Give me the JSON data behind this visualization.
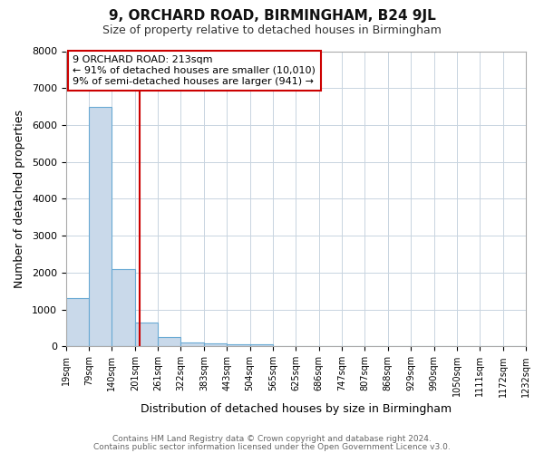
{
  "title1": "9, ORCHARD ROAD, BIRMINGHAM, B24 9JL",
  "title2": "Size of property relative to detached houses in Birmingham",
  "xlabel": "Distribution of detached houses by size in Birmingham",
  "ylabel": "Number of detached properties",
  "bar_heights": [
    1300,
    6500,
    2100,
    650,
    260,
    100,
    70,
    55,
    55,
    0,
    0,
    0,
    0,
    0,
    0,
    0,
    0,
    0,
    0,
    0
  ],
  "bin_edges": [
    19,
    79,
    140,
    201,
    261,
    322,
    383,
    443,
    504,
    565,
    625,
    686,
    747,
    807,
    868,
    929,
    990,
    1050,
    1111,
    1172,
    1232
  ],
  "x_labels": [
    "19sqm",
    "79sqm",
    "140sqm",
    "201sqm",
    "261sqm",
    "322sqm",
    "383sqm",
    "443sqm",
    "504sqm",
    "565sqm",
    "625sqm",
    "686sqm",
    "747sqm",
    "807sqm",
    "868sqm",
    "929sqm",
    "990sqm",
    "1050sqm",
    "1111sqm",
    "1172sqm",
    "1232sqm"
  ],
  "bar_color": "#c9d9ea",
  "bar_edge_color": "#6aaad4",
  "property_line_x": 213,
  "property_line_color": "#cc0000",
  "annotation_line1": "9 ORCHARD ROAD: 213sqm",
  "annotation_line2": "← 91% of detached houses are smaller (10,010)",
  "annotation_line3": "9% of semi-detached houses are larger (941) →",
  "annotation_box_color": "#ffffff",
  "annotation_box_edge": "#cc0000",
  "ylim": [
    0,
    8000
  ],
  "yticks": [
    0,
    1000,
    2000,
    3000,
    4000,
    5000,
    6000,
    7000,
    8000
  ],
  "footer1": "Contains HM Land Registry data © Crown copyright and database right 2024.",
  "footer2": "Contains public sector information licensed under the Open Government Licence v3.0.",
  "bg_color": "#ffffff",
  "plot_bg": "#ffffff",
  "grid_color": "#c8d4e0",
  "title1_fontsize": 11,
  "title2_fontsize": 9,
  "xlabel_fontsize": 9,
  "ylabel_fontsize": 9,
  "tick_fontsize": 8,
  "annot_fontsize": 8,
  "footer_fontsize": 6.5
}
